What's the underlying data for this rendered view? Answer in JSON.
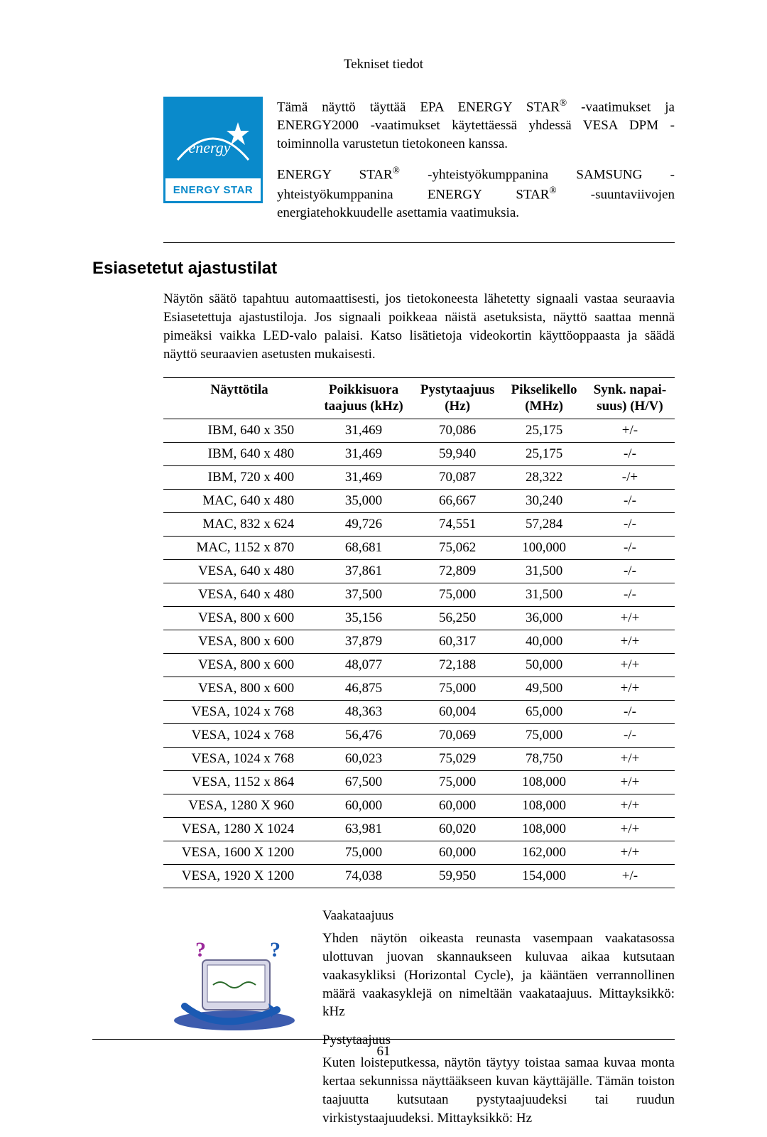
{
  "header": "Tekniset tiedot",
  "energy_badge": {
    "label_top": "energy",
    "label_bottom": "ENERGY STAR"
  },
  "intro": {
    "p1a": "Tämä näyttö täyttää EPA ENERGY STAR",
    "p1b": " -vaatimukset ja ENERGY2000 -vaatimukset käytettäessä yhdessä VESA DPM -toiminnolla varustetun tietokoneen kanssa.",
    "p2a": "ENERGY STAR",
    "p2b": " -yhteistyökumppanina SAMSUNG -yhteistyökumppanina ENERGY STAR",
    "p2c": " -suuntaviivojen energiatehokkuudelle asettamia vaatimuksia."
  },
  "section_title": "Esiasetetut ajastustilat",
  "section_intro": "Näytön säätö tapahtuu automaattisesti, jos tietokoneesta lähetetty signaali vastaa seuraavia Esiasetettuja ajastustiloja. Jos signaali poikkeaa näistä asetuksista, näyttö saattaa mennä pimeäksi vaikka LED-valo palaisi. Katso lisätietoja videokortin käyttöoppaasta ja säädä näyttö seuraavien asetusten mukaisesti.",
  "table": {
    "columns": [
      "Näyttötila",
      "Poikkisuora\ntaajuus (kHz)",
      "Pystytaajuus\n(Hz)",
      "Pikselikello\n(MHz)",
      "Synk. napai-\nsuus) (H/V)"
    ],
    "rows": [
      [
        "IBM, 640 x 350",
        "31,469",
        "70,086",
        "25,175",
        "+/-"
      ],
      [
        "IBM, 640 x 480",
        "31,469",
        "59,940",
        "25,175",
        "-/-"
      ],
      [
        "IBM, 720 x 400",
        "31,469",
        "70,087",
        "28,322",
        "-/+"
      ],
      [
        "MAC, 640 x 480",
        "35,000",
        "66,667",
        "30,240",
        "-/-"
      ],
      [
        "MAC, 832 x 624",
        "49,726",
        "74,551",
        "57,284",
        "-/-"
      ],
      [
        "MAC, 1152 x 870",
        "68,681",
        "75,062",
        "100,000",
        "-/-"
      ],
      [
        "VESA, 640 x 480",
        "37,861",
        "72,809",
        "31,500",
        "-/-"
      ],
      [
        "VESA, 640 x 480",
        "37,500",
        "75,000",
        "31,500",
        "-/-"
      ],
      [
        "VESA, 800 x 600",
        "35,156",
        "56,250",
        "36,000",
        "+/+"
      ],
      [
        "VESA, 800 x 600",
        "37,879",
        "60,317",
        "40,000",
        "+/+"
      ],
      [
        "VESA, 800 x 600",
        "48,077",
        "72,188",
        "50,000",
        "+/+"
      ],
      [
        "VESA, 800 x 600",
        "46,875",
        "75,000",
        "49,500",
        "+/+"
      ],
      [
        "VESA, 1024 x 768",
        "48,363",
        "60,004",
        "65,000",
        "-/-"
      ],
      [
        "VESA, 1024 x 768",
        "56,476",
        "70,069",
        "75,000",
        "-/-"
      ],
      [
        "VESA, 1024 x 768",
        "60,023",
        "75,029",
        "78,750",
        "+/+"
      ],
      [
        "VESA, 1152 x 864",
        "67,500",
        "75,000",
        "108,000",
        "+/+"
      ],
      [
        "VESA, 1280 X 960",
        "60,000",
        "60,000",
        "108,000",
        "+/+"
      ],
      [
        "VESA, 1280 X 1024",
        "63,981",
        "60,020",
        "108,000",
        "+/+"
      ],
      [
        "VESA, 1600 X 1200",
        "75,000",
        "60,000",
        "162,000",
        "+/+"
      ],
      [
        "VESA, 1920 X 1200",
        "74,038",
        "59,950",
        "154,000",
        "+/-"
      ]
    ]
  },
  "defs": {
    "term1": "Vaakataajuus",
    "desc1": "Yhden näytön oikeasta reunasta vasempaan vaakatasossa ulottuvan juovan skannaukseen kuluvaa aikaa kutsutaan vaakasykliksi (Horizontal Cycle), ja kääntäen verrannollinen määrä vaakasyklejä on nimeltään vaakataajuus. Mittayksikkö: kHz",
    "term2": "Pystytaajuus",
    "desc2": "Kuten loisteputkessa, näytön täytyy toistaa samaa kuvaa monta kertaa sekunnissa näyttääkseen kuvan käyttäjälle. Tämän toiston taajuutta kutsutaan pystytaajuudeksi tai ruudun virkistystaajuudeksi. Mittayksikkö: Hz"
  },
  "page_number": "61"
}
